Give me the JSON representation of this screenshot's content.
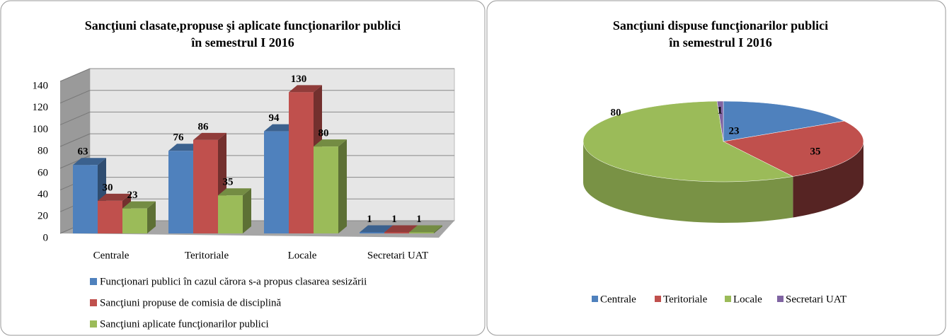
{
  "chart_data": [
    {
      "type": "bar3d",
      "title": [
        "Sancţiuni clasate,propuse şi aplicate funcţionarilor publici",
        "în semestrul I 2016"
      ],
      "categories": [
        "Centrale",
        "Teritoriale",
        "Locale",
        "Secretari UAT"
      ],
      "series": [
        {
          "name": "Funcţionari publici în cazul cărora s-a propus clasarea sesizării",
          "color": "#4f81bd",
          "values": [
            63,
            76,
            94,
            1
          ]
        },
        {
          "name": "Sancţiuni propuse de comisia de disciplină",
          "color": "#c0504d",
          "values": [
            30,
            86,
            130,
            1
          ]
        },
        {
          "name": "Sancţiuni aplicate funcţionarilor publici",
          "color": "#9bbb59",
          "values": [
            23,
            35,
            80,
            1
          ]
        }
      ],
      "ylim": [
        0,
        140
      ],
      "yticks": [
        0,
        20,
        40,
        60,
        80,
        100,
        120,
        140
      ],
      "grid": true
    },
    {
      "type": "pie3d",
      "title": [
        "Sancţiuni dispuse funcţionarilor publici",
        "în semestrul I 2016"
      ],
      "categories": [
        "Centrale",
        "Teritoriale",
        "Locale",
        "Secretari UAT"
      ],
      "values": [
        23,
        35,
        80,
        1
      ],
      "colors": [
        "#4f81bd",
        "#c0504d",
        "#9bbb59",
        "#8064a2"
      ],
      "legend": "bottom"
    }
  ]
}
